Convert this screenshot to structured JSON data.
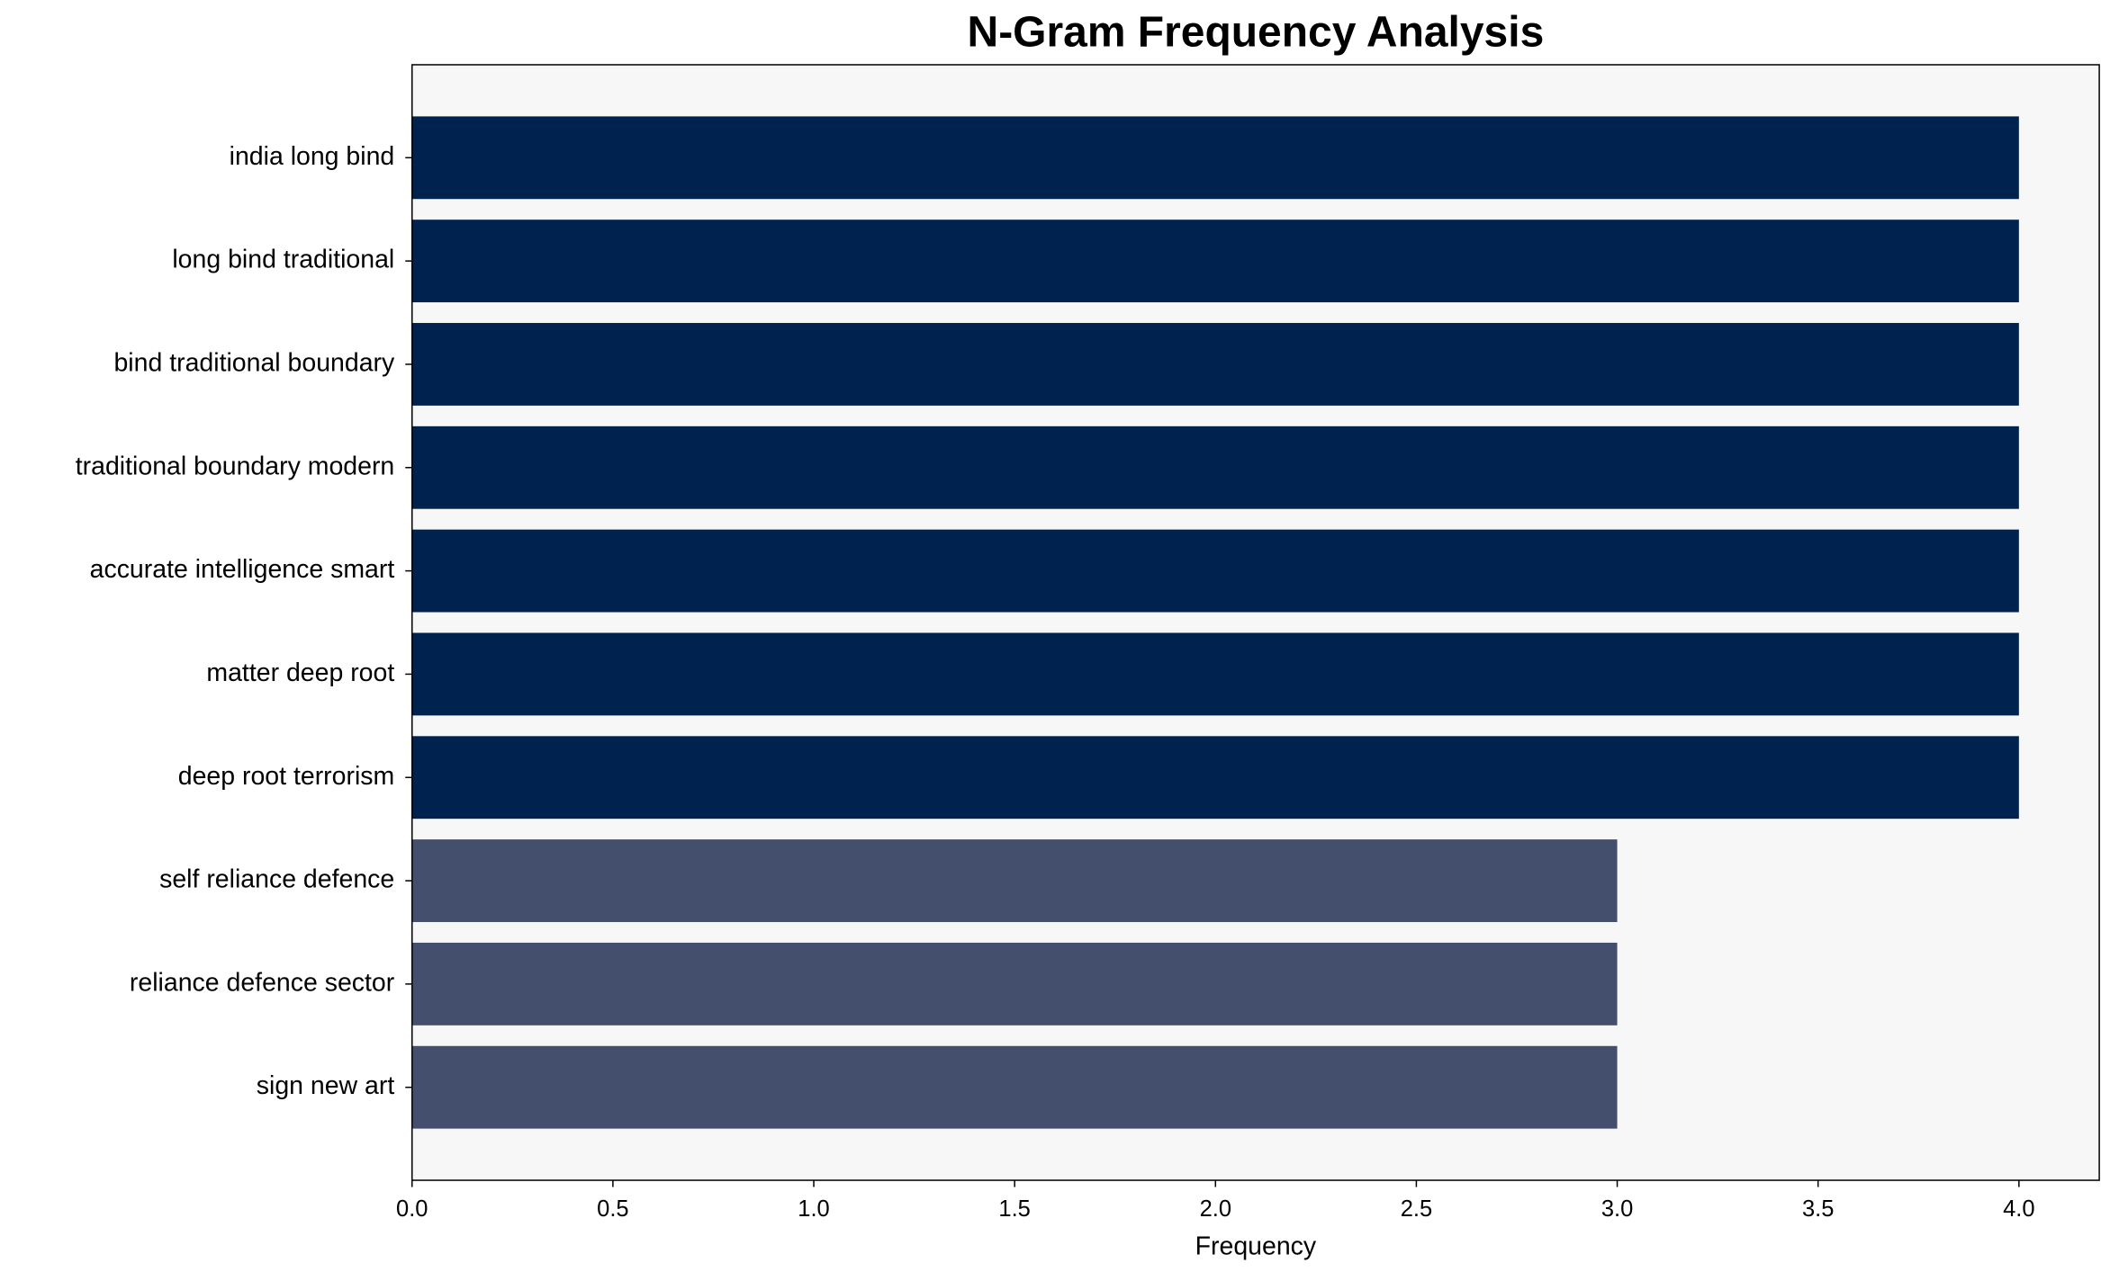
{
  "chart_data": {
    "type": "barh",
    "title": "N-Gram Frequency Analysis",
    "xlabel": "Frequency",
    "categories": [
      "india long bind",
      "long bind traditional",
      "bind traditional boundary",
      "traditional boundary modern",
      "accurate intelligence smart",
      "matter deep root",
      "deep root terrorism",
      "self reliance defence",
      "reliance defence sector",
      "sign new art"
    ],
    "values": [
      4,
      4,
      4,
      4,
      4,
      4,
      4,
      3,
      3,
      3
    ],
    "colors": [
      "#00224e",
      "#00224e",
      "#00224e",
      "#00224e",
      "#00224e",
      "#00224e",
      "#00224e",
      "#444f6d",
      "#444f6d",
      "#444f6d"
    ],
    "xlim": [
      0,
      4.2
    ],
    "xticks": [
      {
        "value": 0,
        "label": "0.0"
      },
      {
        "value": 0.5,
        "label": "0.5"
      },
      {
        "value": 1,
        "label": "1.0"
      },
      {
        "value": 1.5,
        "label": "1.5"
      },
      {
        "value": 2,
        "label": "2.0"
      },
      {
        "value": 2.5,
        "label": "2.5"
      },
      {
        "value": 3,
        "label": "3.0"
      },
      {
        "value": 3.5,
        "label": "3.5"
      },
      {
        "value": 4,
        "label": "4.0"
      }
    ],
    "background": "#f7f7f7"
  }
}
